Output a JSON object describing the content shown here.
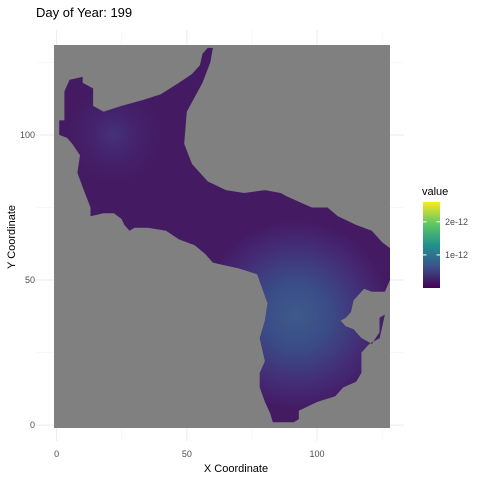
{
  "chart_data": {
    "type": "heatmap",
    "title": "Day of Year: 199",
    "xlabel": "X Coordinate",
    "ylabel": "Y Coordinate",
    "xlim": [
      -1,
      128
    ],
    "ylim": [
      -1,
      131
    ],
    "x_ticks": [
      0,
      50,
      100
    ],
    "y_ticks": [
      0,
      50,
      100
    ],
    "background_color": "#808080",
    "grid": true,
    "colormap": "viridis",
    "legend": {
      "title": "value",
      "placement": "right",
      "range": [
        0,
        2.6e-12
      ],
      "ticks": [
        {
          "value": 1e-12,
          "label": "1e-12"
        },
        {
          "value": 2e-12,
          "label": "2e-12"
        }
      ]
    },
    "region_min_value": 2.5e-13,
    "hotspot": {
      "x": 92,
      "y": 38,
      "peak_value": 1.05e-12
    },
    "region_outline": [
      [
        1,
        105
      ],
      [
        3,
        105
      ],
      [
        3,
        115
      ],
      [
        5,
        119
      ],
      [
        10,
        120
      ],
      [
        10,
        118
      ],
      [
        14,
        116
      ],
      [
        14,
        110
      ],
      [
        18,
        108
      ],
      [
        25,
        110
      ],
      [
        33,
        112
      ],
      [
        40,
        114
      ],
      [
        47,
        118
      ],
      [
        52,
        121
      ],
      [
        55,
        124
      ],
      [
        56,
        128
      ],
      [
        58,
        130
      ],
      [
        60,
        130
      ],
      [
        59,
        125
      ],
      [
        56,
        118
      ],
      [
        50,
        108
      ],
      [
        49,
        97
      ],
      [
        52,
        90
      ],
      [
        58,
        84
      ],
      [
        65,
        81
      ],
      [
        72,
        80
      ],
      [
        80,
        81
      ],
      [
        86,
        80
      ],
      [
        88,
        79
      ],
      [
        93,
        77
      ],
      [
        98,
        75
      ],
      [
        104,
        75
      ],
      [
        108,
        72
      ],
      [
        115,
        69
      ],
      [
        121,
        67
      ],
      [
        123,
        65
      ],
      [
        125,
        63
      ],
      [
        128,
        61
      ],
      [
        128,
        50
      ],
      [
        126,
        46
      ],
      [
        121,
        46
      ],
      [
        118,
        47
      ],
      [
        114,
        43
      ],
      [
        113,
        39
      ],
      [
        111,
        37
      ],
      [
        109,
        36
      ],
      [
        111,
        34
      ],
      [
        114,
        33
      ],
      [
        117,
        30
      ],
      [
        121,
        28
      ],
      [
        124,
        32
      ],
      [
        124,
        37
      ],
      [
        126,
        38
      ],
      [
        124,
        30
      ],
      [
        120,
        28
      ],
      [
        117,
        25
      ],
      [
        117,
        18
      ],
      [
        115,
        15
      ],
      [
        110,
        13
      ],
      [
        107,
        10
      ],
      [
        100,
        8
      ],
      [
        93,
        5
      ],
      [
        93,
        2
      ],
      [
        91,
        1
      ],
      [
        83,
        1
      ],
      [
        82,
        4
      ],
      [
        80,
        8
      ],
      [
        78,
        13
      ],
      [
        78,
        18
      ],
      [
        80,
        22
      ],
      [
        79,
        26
      ],
      [
        78,
        30
      ],
      [
        80,
        36
      ],
      [
        81,
        42
      ],
      [
        79,
        47
      ],
      [
        77,
        52
      ],
      [
        70,
        54
      ],
      [
        60,
        56
      ],
      [
        57,
        59
      ],
      [
        53,
        62
      ],
      [
        47,
        64
      ],
      [
        42,
        67
      ],
      [
        35,
        68
      ],
      [
        30,
        68
      ],
      [
        28,
        67
      ],
      [
        26,
        69
      ],
      [
        25,
        71
      ],
      [
        22,
        73
      ],
      [
        18,
        73
      ],
      [
        13,
        72
      ],
      [
        13,
        75
      ],
      [
        10,
        82
      ],
      [
        8,
        87
      ],
      [
        9,
        93
      ],
      [
        6,
        97
      ],
      [
        4,
        99
      ],
      [
        1,
        100
      ]
    ]
  }
}
